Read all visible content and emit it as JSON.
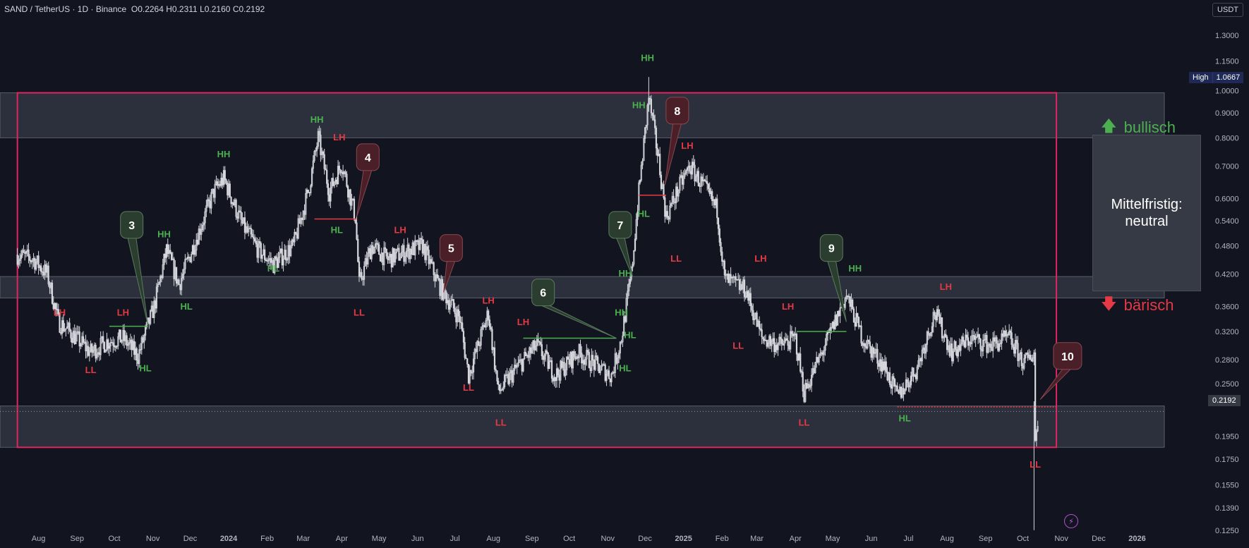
{
  "header": {
    "symbol": "SAND / TetherUS · 1D · Binance",
    "open": "O0.2264",
    "high": "H0.2311",
    "low": "L0.2160",
    "close": "C0.2192"
  },
  "currency_button": "USDT",
  "high_tag": {
    "label": "High",
    "value": "1.0667"
  },
  "last_price_tag": "0.2192",
  "annotations": {
    "bullish_label": "bullisch",
    "bearish_label": "bärisch",
    "midterm_text": "Mittelfristig: neutral"
  },
  "colors": {
    "background": "#121520",
    "candles": "#d6d8de",
    "range_frame": "#e0245e",
    "zone_fill": "#363a45",
    "label_green": "#4caf50",
    "label_red": "#e53945",
    "bubble_green": "#2a3d2e",
    "bubble_red": "#4a1f28"
  },
  "chart_data": {
    "type": "candlestick",
    "symbol": "SAND/USDT",
    "interval": "1D",
    "y_scale": "log",
    "y_ticks": [
      "1.3000",
      "1.1500",
      "1.0000",
      "0.9000",
      "0.8000",
      "0.7000",
      "0.6000",
      "0.5400",
      "0.4800",
      "0.4200",
      "0.3600",
      "0.3200",
      "0.2800",
      "0.2500",
      "0.2192",
      "0.1950",
      "0.1750",
      "0.1550",
      "0.1390",
      "0.1250"
    ],
    "x_ticks": [
      "Aug",
      "Sep",
      "Oct",
      "Nov",
      "Dec",
      "2024",
      "Feb",
      "Mar",
      "Apr",
      "May",
      "Jun",
      "Jul",
      "Aug",
      "Sep",
      "Oct",
      "Nov",
      "Dec",
      "2025",
      "Feb",
      "Mar",
      "Apr",
      "May",
      "Jun",
      "Jul",
      "Aug",
      "Sep",
      "Oct",
      "Nov",
      "Dec",
      "2026"
    ],
    "price_path": [
      {
        "d": "2023-07-15",
        "p": 0.46
      },
      {
        "d": "2023-07-28",
        "p": 0.45
      },
      {
        "d": "2023-08-08",
        "p": 0.42
      },
      {
        "d": "2023-08-17",
        "p": 0.335
      },
      {
        "d": "2023-08-26",
        "p": 0.32
      },
      {
        "d": "2023-09-12",
        "p": 0.29
      },
      {
        "d": "2023-09-25",
        "p": 0.305
      },
      {
        "d": "2023-10-08",
        "p": 0.31
      },
      {
        "d": "2023-10-20",
        "p": 0.285
      },
      {
        "d": "2023-11-02",
        "p": 0.36
      },
      {
        "d": "2023-11-12",
        "p": 0.47
      },
      {
        "d": "2023-11-22",
        "p": 0.4
      },
      {
        "d": "2023-12-05",
        "p": 0.49
      },
      {
        "d": "2023-12-20",
        "p": 0.62
      },
      {
        "d": "2023-12-28",
        "p": 0.66
      },
      {
        "d": "2024-01-12",
        "p": 0.53
      },
      {
        "d": "2024-01-25",
        "p": 0.47
      },
      {
        "d": "2024-02-06",
        "p": 0.44
      },
      {
        "d": "2024-02-22",
        "p": 0.48
      },
      {
        "d": "2024-03-05",
        "p": 0.62
      },
      {
        "d": "2024-03-13",
        "p": 0.8
      },
      {
        "d": "2024-03-22",
        "p": 0.62
      },
      {
        "d": "2024-04-01",
        "p": 0.71
      },
      {
        "d": "2024-04-12",
        "p": 0.55
      },
      {
        "d": "2024-04-15",
        "p": 0.4
      },
      {
        "d": "2024-04-25",
        "p": 0.48
      },
      {
        "d": "2024-05-08",
        "p": 0.45
      },
      {
        "d": "2024-05-25",
        "p": 0.47
      },
      {
        "d": "2024-06-05",
        "p": 0.48
      },
      {
        "d": "2024-06-18",
        "p": 0.4
      },
      {
        "d": "2024-07-05",
        "p": 0.34
      },
      {
        "d": "2024-07-12",
        "p": 0.26
      },
      {
        "d": "2024-07-28",
        "p": 0.35
      },
      {
        "d": "2024-08-05",
        "p": 0.24
      },
      {
        "d": "2024-08-20",
        "p": 0.27
      },
      {
        "d": "2024-09-05",
        "p": 0.3
      },
      {
        "d": "2024-09-20",
        "p": 0.26
      },
      {
        "d": "2024-10-08",
        "p": 0.29
      },
      {
        "d": "2024-10-25",
        "p": 0.27
      },
      {
        "d": "2024-11-04",
        "p": 0.26
      },
      {
        "d": "2024-11-12",
        "p": 0.31
      },
      {
        "d": "2024-11-20",
        "p": 0.42
      },
      {
        "d": "2024-11-26",
        "p": 0.62
      },
      {
        "d": "2024-12-04",
        "p": 0.97
      },
      {
        "d": "2024-12-12",
        "p": 0.72
      },
      {
        "d": "2024-12-18",
        "p": 0.55
      },
      {
        "d": "2024-12-28",
        "p": 0.63
      },
      {
        "d": "2025-01-06",
        "p": 0.7
      },
      {
        "d": "2025-01-18",
        "p": 0.63
      },
      {
        "d": "2025-01-28",
        "p": 0.57
      },
      {
        "d": "2025-02-03",
        "p": 0.41
      },
      {
        "d": "2025-02-20",
        "p": 0.39
      },
      {
        "d": "2025-03-05",
        "p": 0.31
      },
      {
        "d": "2025-03-20",
        "p": 0.3
      },
      {
        "d": "2025-04-01",
        "p": 0.31
      },
      {
        "d": "2025-04-08",
        "p": 0.24
      },
      {
        "d": "2025-04-25",
        "p": 0.3
      },
      {
        "d": "2025-05-12",
        "p": 0.38
      },
      {
        "d": "2025-05-25",
        "p": 0.31
      },
      {
        "d": "2025-06-12",
        "p": 0.27
      },
      {
        "d": "2025-06-22",
        "p": 0.235
      },
      {
        "d": "2025-07-08",
        "p": 0.27
      },
      {
        "d": "2025-07-22",
        "p": 0.35
      },
      {
        "d": "2025-08-05",
        "p": 0.29
      },
      {
        "d": "2025-08-20",
        "p": 0.31
      },
      {
        "d": "2025-09-05",
        "p": 0.3
      },
      {
        "d": "2025-09-20",
        "p": 0.31
      },
      {
        "d": "2025-10-02",
        "p": 0.275
      },
      {
        "d": "2025-10-10",
        "p": 0.29
      },
      {
        "d": "2025-10-11",
        "p": 0.19
      },
      {
        "d": "2025-10-14",
        "p": 0.22
      }
    ],
    "wick_extremes": [
      {
        "d": "2024-12-04",
        "high": 1.0667
      },
      {
        "d": "2025-10-10",
        "low": 0.125
      }
    ],
    "zones": [
      {
        "role": "upper",
        "from": 0.8,
        "to": 0.99
      },
      {
        "role": "middle",
        "from": 0.375,
        "to": 0.415
      },
      {
        "role": "lower",
        "from": 0.185,
        "to": 0.225
      }
    ],
    "range_frame": {
      "top": 0.99,
      "bottom": 0.185,
      "from": "2023-07-15",
      "to": "2025-10-28"
    },
    "structure_labels": [
      {
        "t": "LH",
        "c": "red",
        "d": "2023-08-18",
        "p": 0.345
      },
      {
        "t": "LL",
        "c": "red",
        "d": "2023-09-12",
        "p": 0.263
      },
      {
        "t": "LH",
        "c": "red",
        "d": "2023-10-08",
        "p": 0.345
      },
      {
        "t": "HL",
        "c": "green",
        "d": "2023-10-26",
        "p": 0.265
      },
      {
        "t": "HH",
        "c": "green",
        "d": "2023-11-10",
        "p": 0.5
      },
      {
        "t": "HL",
        "c": "green",
        "d": "2023-11-28",
        "p": 0.355
      },
      {
        "t": "HH",
        "c": "green",
        "d": "2023-12-28",
        "p": 0.73
      },
      {
        "t": "HL",
        "c": "green",
        "d": "2024-02-06",
        "p": 0.425
      },
      {
        "t": "HH",
        "c": "green",
        "d": "2024-03-12",
        "p": 0.86
      },
      {
        "t": "LH",
        "c": "red",
        "d": "2024-03-30",
        "p": 0.79
      },
      {
        "t": "HL",
        "c": "green",
        "d": "2024-03-28",
        "p": 0.51
      },
      {
        "t": "LL",
        "c": "red",
        "d": "2024-04-15",
        "p": 0.345
      },
      {
        "t": "LH",
        "c": "red",
        "d": "2024-05-18",
        "p": 0.51
      },
      {
        "t": "LH",
        "c": "red",
        "d": "2024-07-28",
        "p": 0.365
      },
      {
        "t": "LL",
        "c": "red",
        "d": "2024-07-12",
        "p": 0.242
      },
      {
        "t": "LH",
        "c": "red",
        "d": "2024-08-25",
        "p": 0.33
      },
      {
        "t": "LL",
        "c": "red",
        "d": "2024-08-07",
        "p": 0.205
      },
      {
        "t": "HH",
        "c": "green",
        "d": "2024-11-12",
        "p": 0.345
      },
      {
        "t": "HL",
        "c": "green",
        "d": "2024-11-19",
        "p": 0.31
      },
      {
        "t": "HL",
        "c": "green",
        "d": "2024-11-15",
        "p": 0.265
      },
      {
        "t": "HH",
        "c": "green",
        "d": "2024-11-15",
        "p": 0.415
      },
      {
        "t": "HH",
        "c": "green",
        "d": "2024-11-26",
        "p": 0.92
      },
      {
        "t": "HH",
        "c": "green",
        "d": "2024-12-03",
        "p": 1.15
      },
      {
        "t": "HL",
        "c": "green",
        "d": "2024-11-30",
        "p": 0.55
      },
      {
        "t": "LH",
        "c": "red",
        "d": "2025-01-04",
        "p": 0.76
      },
      {
        "t": "LL",
        "c": "red",
        "d": "2024-12-26",
        "p": 0.445
      },
      {
        "t": "LH",
        "c": "red",
        "d": "2025-03-04",
        "p": 0.445
      },
      {
        "t": "LL",
        "c": "red",
        "d": "2025-02-14",
        "p": 0.295
      },
      {
        "t": "LH",
        "c": "red",
        "d": "2025-03-26",
        "p": 0.355
      },
      {
        "t": "LL",
        "c": "red",
        "d": "2025-04-08",
        "p": 0.205
      },
      {
        "t": "HH",
        "c": "green",
        "d": "2025-05-19",
        "p": 0.425
      },
      {
        "t": "LH",
        "c": "red",
        "d": "2025-07-31",
        "p": 0.39
      },
      {
        "t": "HL",
        "c": "green",
        "d": "2025-06-28",
        "p": 0.209
      },
      {
        "t": "LL",
        "c": "red",
        "d": "2025-10-11",
        "p": 0.168
      }
    ],
    "bubbles": [
      {
        "n": "3",
        "c": "green",
        "d": "2023-10-15",
        "p": 0.53,
        "to_d": "2023-10-28",
        "to_p": 0.33
      },
      {
        "n": "4",
        "c": "red",
        "d": "2024-04-22",
        "p": 0.73,
        "to_d": "2024-04-13",
        "to_p": 0.55
      },
      {
        "n": "5",
        "c": "red",
        "d": "2024-06-28",
        "p": 0.475,
        "to_d": "2024-06-22",
        "to_p": 0.385
      },
      {
        "n": "6",
        "c": "green",
        "d": "2024-09-10",
        "p": 0.385,
        "to_d": "2024-11-08",
        "to_p": 0.31
      },
      {
        "n": "7",
        "c": "green",
        "d": "2024-11-11",
        "p": 0.53,
        "to_d": "2024-11-21",
        "to_p": 0.415
      },
      {
        "n": "8",
        "c": "red",
        "d": "2024-12-27",
        "p": 0.91,
        "to_d": "2024-12-17",
        "to_p": 0.64
      },
      {
        "n": "9",
        "c": "green",
        "d": "2025-04-30",
        "p": 0.475,
        "to_d": "2025-05-12",
        "to_p": 0.335
      },
      {
        "n": "10",
        "c": "red",
        "d": "2025-11-06",
        "p": 0.285,
        "to_d": "2025-10-15",
        "to_p": 0.232
      }
    ],
    "support_lines": [
      {
        "c": "green",
        "from": "2023-09-27",
        "to": "2023-10-28",
        "p": 0.328
      },
      {
        "c": "red",
        "from": "2024-03-10",
        "to": "2024-04-13",
        "p": 0.545
      },
      {
        "c": "green",
        "from": "2024-08-25",
        "to": "2024-11-08",
        "p": 0.31
      },
      {
        "c": "red",
        "from": "2024-11-26",
        "to": "2024-12-18",
        "p": 0.61
      },
      {
        "c": "green",
        "from": "2025-04-02",
        "to": "2025-05-12",
        "p": 0.32
      },
      {
        "c": "red",
        "from": "2025-06-22",
        "to": "2025-10-28",
        "p": 0.224
      }
    ]
  }
}
